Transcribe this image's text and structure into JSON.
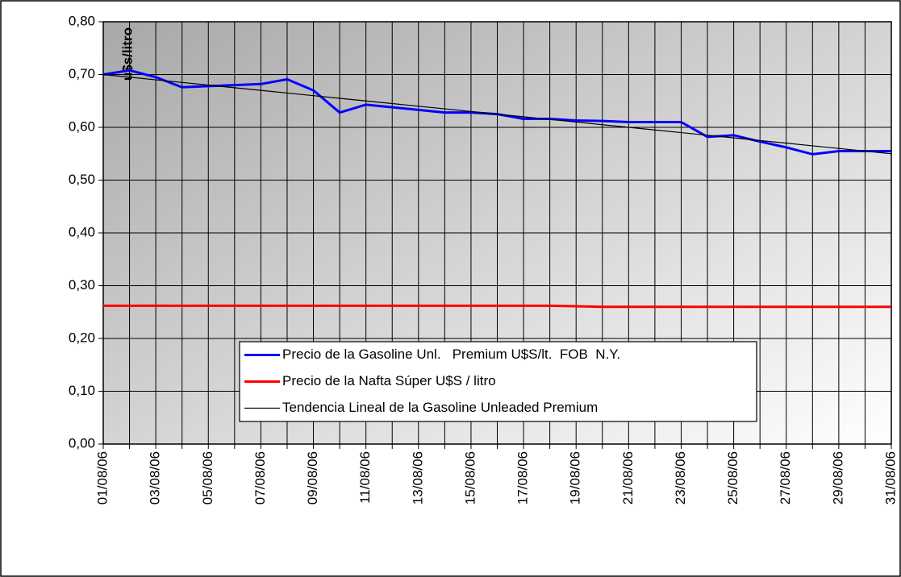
{
  "chart_data": {
    "type": "line",
    "y_label": "u$s/litro",
    "categories": [
      "01/08/06",
      null,
      "03/08/06",
      null,
      "05/08/06",
      null,
      "07/08/06",
      null,
      "09/08/06",
      null,
      "11/08/06",
      null,
      "13/08/06",
      null,
      "15/08/06",
      null,
      "17/08/06",
      null,
      "19/08/06",
      null,
      "21/08/06",
      null,
      "23/08/06",
      null,
      "25/08/06",
      null,
      "27/08/06",
      null,
      "29/08/06",
      null,
      "31/08/06"
    ],
    "series": [
      {
        "name": "Precio de la Gasoline Unl.   Premium U$S/lt.  FOB  N.Y.",
        "color": "#0000ff",
        "width": 3,
        "values": [
          0.7,
          0.708,
          0.695,
          0.676,
          0.678,
          0.68,
          0.682,
          0.691,
          0.67,
          0.628,
          0.643,
          0.638,
          0.633,
          0.628,
          0.628,
          0.625,
          0.616,
          0.616,
          0.613,
          0.612,
          0.61,
          0.61,
          0.61,
          0.582,
          0.585,
          0.573,
          0.562,
          0.549,
          0.555,
          0.555,
          0.555
        ]
      },
      {
        "name": "Precio de la Nafta Súper U$S / litro",
        "color": "#ff0000",
        "width": 3,
        "values": [
          0.262,
          0.262,
          0.262,
          0.262,
          0.262,
          0.262,
          0.262,
          0.262,
          0.262,
          0.262,
          0.262,
          0.262,
          0.262,
          0.262,
          0.262,
          0.262,
          0.262,
          0.262,
          0.261,
          0.26,
          0.26,
          0.26,
          0.26,
          0.26,
          0.26,
          0.26,
          0.26,
          0.26,
          0.26,
          0.26,
          0.26
        ]
      },
      {
        "name": "Tendencia Lineal de la Gasoline Unleaded Premium",
        "color": "#000000",
        "width": 1.2,
        "values": [
          0.7,
          0.695,
          0.69,
          0.685,
          0.68,
          0.675,
          0.67,
          0.665,
          0.66,
          0.655,
          0.65,
          0.645,
          0.64,
          0.635,
          0.63,
          0.625,
          0.62,
          0.615,
          0.61,
          0.605,
          0.6,
          0.595,
          0.59,
          0.585,
          0.58,
          0.575,
          0.57,
          0.565,
          0.56,
          0.555,
          0.55
        ]
      }
    ],
    "ylim": [
      0,
      0.8
    ],
    "yticks": [
      {
        "value": 0,
        "label": "0,00"
      },
      {
        "value": 0.1,
        "label": "0,10"
      },
      {
        "value": 0.2,
        "label": "0,20"
      },
      {
        "value": 0.3,
        "label": "0,30"
      },
      {
        "value": 0.4,
        "label": "0,40"
      },
      {
        "value": 0.5,
        "label": "0,50"
      },
      {
        "value": 0.6,
        "label": "0,60"
      },
      {
        "value": 0.7,
        "label": "0,70"
      },
      {
        "value": 0.8,
        "label": "0,80"
      }
    ],
    "grid": true,
    "legend": "bottom"
  }
}
